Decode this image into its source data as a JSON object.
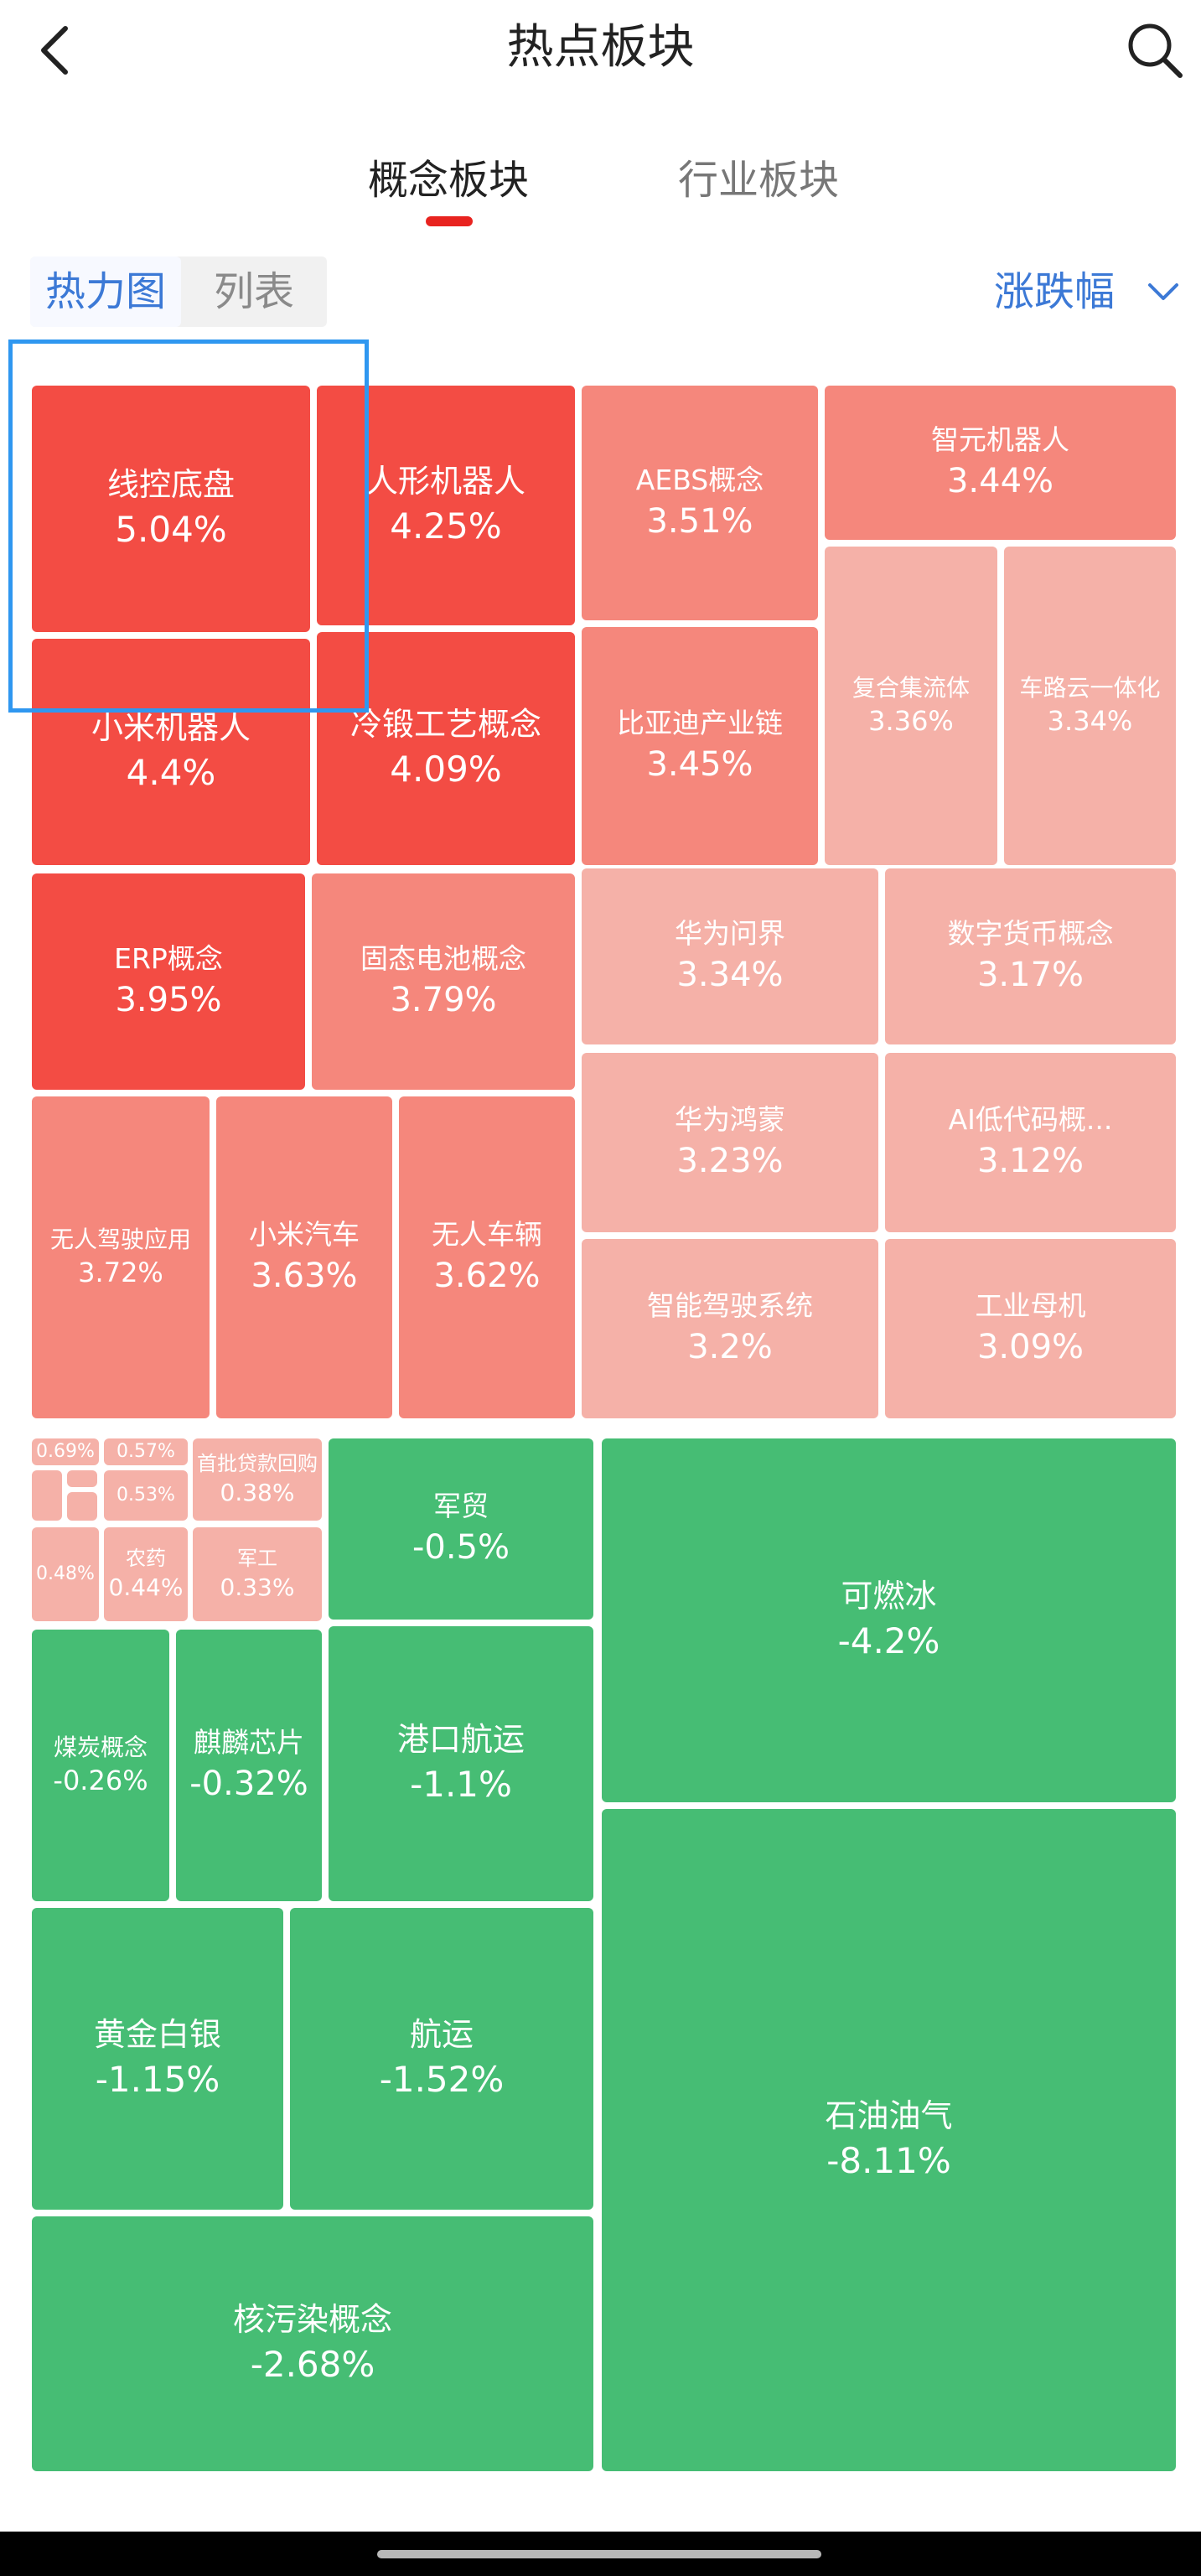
{
  "header": {
    "title": "热点板块"
  },
  "tabs": [
    {
      "label": "概念板块"
    },
    {
      "label": "行业板块"
    }
  ],
  "view_toggle": {
    "heatmap": "热力图",
    "list": "列表"
  },
  "sort": {
    "label": "涨跌幅"
  },
  "colors": {
    "accent_blue": "#3c79d6",
    "tab_indicator": "#e8231f",
    "up_strong": "#f34c44",
    "up_mid": "#f5877c",
    "up_light": "#f5b1a8",
    "down": "#46bd74",
    "focus_box": "#2f97f0"
  },
  "tiles": [
    {
      "name": "线控底盘",
      "pct": "5.04%"
    },
    {
      "name": "人形机器人",
      "pct": "4.25%"
    },
    {
      "name": "小米机器人",
      "pct": "4.4%"
    },
    {
      "name": "冷锻工艺概念",
      "pct": "4.09%"
    },
    {
      "name": "AEBS概念",
      "pct": "3.51%"
    },
    {
      "name": "比亚迪产业链",
      "pct": "3.45%"
    },
    {
      "name": "智元机器人",
      "pct": "3.44%"
    },
    {
      "name": "复合集流体",
      "pct": "3.36%"
    },
    {
      "name": "车路云一体化",
      "pct": "3.34%"
    },
    {
      "name": "ERP概念",
      "pct": "3.95%"
    },
    {
      "name": "固态电池概念",
      "pct": "3.79%"
    },
    {
      "name": "华为问界",
      "pct": "3.34%"
    },
    {
      "name": "数字货币概念",
      "pct": "3.17%"
    },
    {
      "name": "无人驾驶应用",
      "pct": "3.72%"
    },
    {
      "name": "小米汽车",
      "pct": "3.63%"
    },
    {
      "name": "无人车辆",
      "pct": "3.62%"
    },
    {
      "name": "华为鸿蒙",
      "pct": "3.23%"
    },
    {
      "name": "AI低代码概...",
      "pct": "3.12%"
    },
    {
      "name": "智能驾驶系统",
      "pct": "3.2%"
    },
    {
      "name": "工业母机",
      "pct": "3.09%"
    },
    {
      "name": "",
      "pct": "0.69%"
    },
    {
      "name": "",
      "pct": "0.57%"
    },
    {
      "name": "",
      "pct": "0.53%"
    },
    {
      "name": "首批贷款回购",
      "pct": "0.38%"
    },
    {
      "name": "",
      "pct": "0.48%"
    },
    {
      "name": "农药",
      "pct": "0.44%"
    },
    {
      "name": "军工",
      "pct": "0.33%"
    },
    {
      "name": "军贸",
      "pct": "-0.5%"
    },
    {
      "name": "可燃冰",
      "pct": "-4.2%"
    },
    {
      "name": "煤炭概念",
      "pct": "-0.26%"
    },
    {
      "name": "麒麟芯片",
      "pct": "-0.32%"
    },
    {
      "name": "港口航运",
      "pct": "-1.1%"
    },
    {
      "name": "黄金白银",
      "pct": "-1.15%"
    },
    {
      "name": "航运",
      "pct": "-1.52%"
    },
    {
      "name": "石油油气",
      "pct": "-8.11%"
    },
    {
      "name": "核污染概念",
      "pct": "-2.68%"
    }
  ]
}
